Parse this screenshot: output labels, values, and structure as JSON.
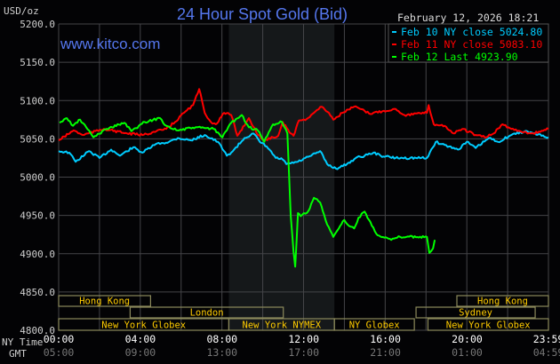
{
  "chart_data": {
    "type": "line",
    "title": "24 Hour Spot Gold (Bid)",
    "unit_label": "USD/oz",
    "timestamp": "February 12, 2026 18:21",
    "watermark": "www.kitco.com",
    "ylim": [
      4800,
      5200
    ],
    "yticks": [
      "5200.0",
      "5150.0",
      "5100.0",
      "5050.0",
      "5000.0",
      "4950.0",
      "4900.0",
      "4850.0",
      "4800.0"
    ],
    "xlim": [
      "00:00",
      "23:59"
    ],
    "grid": true,
    "legend_placement": "top-right",
    "x_axis": {
      "ny_label": "NY Time",
      "gmt_label": "GMT",
      "ny_ticks": [
        "00:00",
        "04:00",
        "08:00",
        "12:00",
        "16:00",
        "20:00",
        "23:59"
      ],
      "gmt_ticks": [
        "05:00",
        "09:00",
        "13:00",
        "17:00",
        "21:00",
        "01:00",
        "04:59"
      ]
    },
    "shaded_session": {
      "start": "08:20",
      "end": "13:30",
      "color": "#15181a"
    },
    "series": [
      {
        "name": "Feb 10 NY close 5024.80",
        "color": "#00ccff",
        "points": [
          [
            "00:00",
            5034
          ],
          [
            "00:31",
            5032
          ],
          [
            "00:50",
            5020
          ],
          [
            "01:29",
            5034
          ],
          [
            "02:00",
            5025
          ],
          [
            "02:34",
            5036
          ],
          [
            "03:00",
            5028
          ],
          [
            "03:39",
            5039
          ],
          [
            "04:06",
            5032
          ],
          [
            "04:45",
            5043
          ],
          [
            "05:24",
            5046
          ],
          [
            "05:50",
            5051
          ],
          [
            "06:29",
            5048
          ],
          [
            "07:09",
            5055
          ],
          [
            "07:48",
            5046
          ],
          [
            "08:14",
            5028
          ],
          [
            "08:32",
            5034
          ],
          [
            "09:06",
            5051
          ],
          [
            "09:32",
            5057
          ],
          [
            "09:51",
            5046
          ],
          [
            "10:11",
            5040
          ],
          [
            "10:38",
            5025
          ],
          [
            "10:58",
            5023
          ],
          [
            "11:09",
            5017
          ],
          [
            "11:43",
            5020
          ],
          [
            "12:22",
            5028
          ],
          [
            "12:48",
            5034
          ],
          [
            "13:09",
            5017
          ],
          [
            "13:35",
            5011
          ],
          [
            "14:07",
            5017
          ],
          [
            "14:33",
            5025
          ],
          [
            "14:59",
            5028
          ],
          [
            "15:25",
            5032
          ],
          [
            "15:46",
            5028
          ],
          [
            "16:30",
            5025
          ],
          [
            "18:02",
            5025
          ],
          [
            "18:28",
            5046
          ],
          [
            "19:07",
            5040
          ],
          [
            "19:33",
            5036
          ],
          [
            "19:59",
            5046
          ],
          [
            "20:25",
            5038
          ],
          [
            "21:04",
            5051
          ],
          [
            "21:31",
            5046
          ],
          [
            "22:10",
            5055
          ],
          [
            "22:49",
            5060
          ],
          [
            "23:15",
            5057
          ],
          [
            "23:59",
            5052
          ]
        ]
      },
      {
        "name": "Feb 11 NY close 5083.10",
        "color": "#ff0000",
        "points": [
          [
            "00:00",
            5048
          ],
          [
            "00:44",
            5061
          ],
          [
            "01:11",
            5055
          ],
          [
            "02:13",
            5063
          ],
          [
            "03:21",
            5057
          ],
          [
            "04:06",
            5055
          ],
          [
            "05:16",
            5063
          ],
          [
            "05:42",
            5072
          ],
          [
            "06:08",
            5084
          ],
          [
            "06:35",
            5094
          ],
          [
            "06:53",
            5115
          ],
          [
            "07:09",
            5084
          ],
          [
            "07:27",
            5072
          ],
          [
            "07:42",
            5069
          ],
          [
            "08:06",
            5084
          ],
          [
            "08:27",
            5081
          ],
          [
            "08:45",
            5054
          ],
          [
            "09:19",
            5077
          ],
          [
            "09:45",
            5055
          ],
          [
            "10:04",
            5048
          ],
          [
            "10:30",
            5052
          ],
          [
            "10:45",
            5054
          ],
          [
            "10:58",
            5072
          ],
          [
            "11:22",
            5057
          ],
          [
            "11:30",
            5054
          ],
          [
            "11:46",
            5074
          ],
          [
            "12:09",
            5076
          ],
          [
            "12:35",
            5086
          ],
          [
            "12:53",
            5092
          ],
          [
            "13:14",
            5084
          ],
          [
            "13:27",
            5075
          ],
          [
            "13:54",
            5084
          ],
          [
            "14:28",
            5092
          ],
          [
            "14:46",
            5089
          ],
          [
            "15:12",
            5083
          ],
          [
            "15:51",
            5086
          ],
          [
            "16:30",
            5089
          ],
          [
            "16:56",
            5081
          ],
          [
            "18:02",
            5084
          ],
          [
            "18:07",
            5094
          ],
          [
            "18:22",
            5069
          ],
          [
            "18:54",
            5067
          ],
          [
            "19:20",
            5057
          ],
          [
            "19:46",
            5063
          ],
          [
            "20:25",
            5055
          ],
          [
            "20:52",
            5052
          ],
          [
            "21:18",
            5057
          ],
          [
            "21:44",
            5069
          ],
          [
            "22:10",
            5063
          ],
          [
            "22:36",
            5060
          ],
          [
            "23:15",
            5057
          ],
          [
            "23:59",
            5063
          ]
        ]
      },
      {
        "name": "Feb 12 Last 4923.90",
        "color": "#00ff00",
        "points": [
          [
            "00:03",
            5071
          ],
          [
            "00:24",
            5077
          ],
          [
            "00:42",
            5067
          ],
          [
            "01:03",
            5075
          ],
          [
            "01:21",
            5065
          ],
          [
            "01:42",
            5052
          ],
          [
            "02:21",
            5063
          ],
          [
            "03:13",
            5071
          ],
          [
            "03:34",
            5060
          ],
          [
            "04:13",
            5072
          ],
          [
            "04:58",
            5077
          ],
          [
            "05:16",
            5067
          ],
          [
            "05:50",
            5061
          ],
          [
            "06:42",
            5065
          ],
          [
            "07:35",
            5063
          ],
          [
            "08:01",
            5052
          ],
          [
            "08:27",
            5071
          ],
          [
            "08:58",
            5081
          ],
          [
            "09:19",
            5065
          ],
          [
            "09:45",
            5061
          ],
          [
            "10:04",
            5046
          ],
          [
            "10:30",
            5069
          ],
          [
            "10:56",
            5072
          ],
          [
            "11:12",
            5057
          ],
          [
            "11:17",
            5003
          ],
          [
            "11:22",
            4949
          ],
          [
            "11:30",
            4903
          ],
          [
            "11:35",
            4883
          ],
          [
            "11:43",
            4953
          ],
          [
            "11:51",
            4949
          ],
          [
            "12:14",
            4956
          ],
          [
            "12:30",
            4973
          ],
          [
            "12:48",
            4967
          ],
          [
            "13:09",
            4938
          ],
          [
            "13:27",
            4922
          ],
          [
            "13:59",
            4944
          ],
          [
            "14:14",
            4936
          ],
          [
            "14:28",
            4933
          ],
          [
            "14:41",
            4947
          ],
          [
            "14:59",
            4955
          ],
          [
            "15:33",
            4926
          ],
          [
            "16:17",
            4918
          ],
          [
            "16:43",
            4922
          ],
          [
            "17:02",
            4922
          ],
          [
            "18:02",
            4922
          ],
          [
            "18:09",
            4901
          ],
          [
            "18:20",
            4907
          ],
          [
            "18:25",
            4918
          ]
        ]
      }
    ],
    "sessions": [
      {
        "label": "Hong Kong",
        "row": 1,
        "start": "00:00",
        "end": "04:30"
      },
      {
        "label": "Hong Kong",
        "row": 1,
        "start": "19:30",
        "end": "23:59"
      },
      {
        "label": "London",
        "row": 2,
        "start": "03:30",
        "end": "11:00"
      },
      {
        "label": "Sydney",
        "row": 2,
        "start": "17:30",
        "end": "23:20"
      },
      {
        "label": "New York Globex",
        "row": 3,
        "start": "00:00",
        "end": "08:20"
      },
      {
        "label": "New York NYMEX",
        "row": 3,
        "start": "08:20",
        "end": "13:30"
      },
      {
        "label": "NY Globex",
        "row": 3,
        "start": "13:30",
        "end": "17:25"
      },
      {
        "label": "New York Globex",
        "row": 3,
        "start": "18:05",
        "end": "23:59"
      }
    ]
  }
}
